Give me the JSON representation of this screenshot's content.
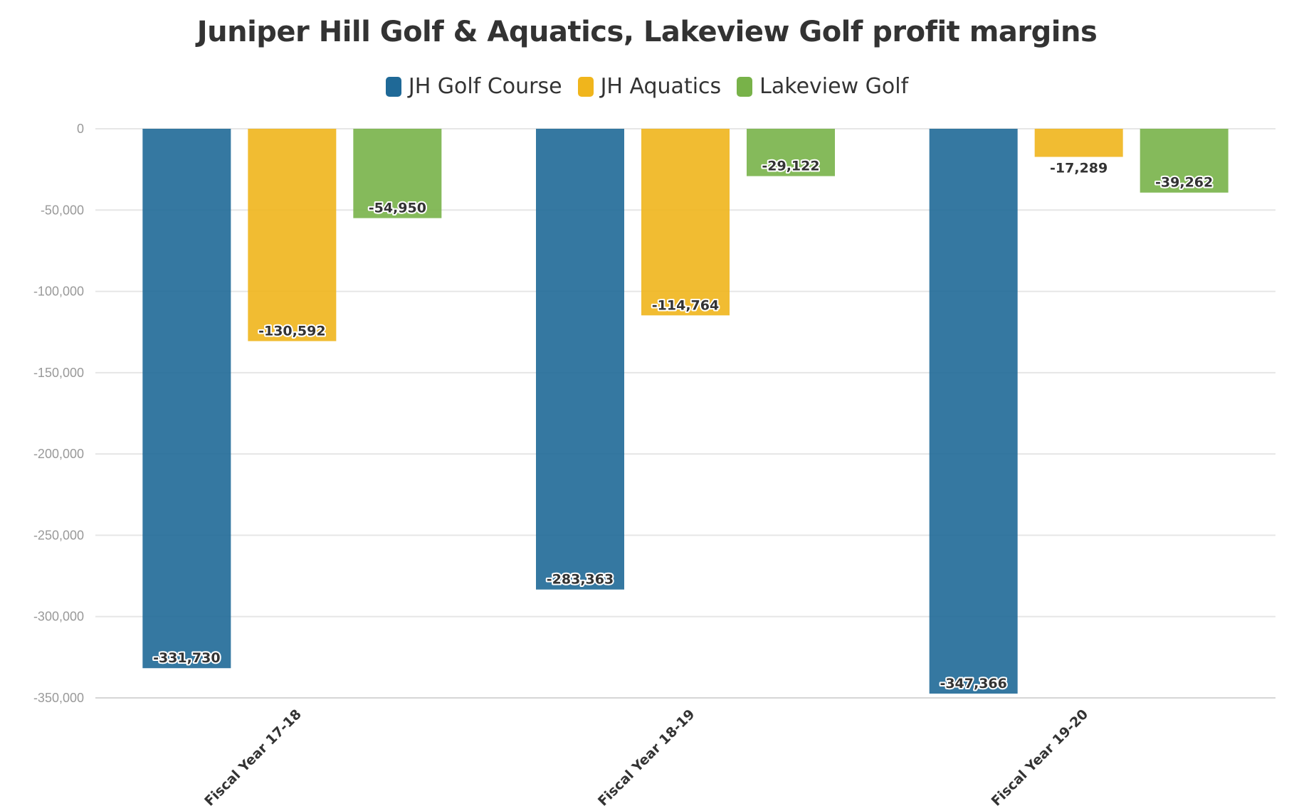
{
  "chart_data": {
    "type": "bar",
    "title": "Juniper Hill Golf & Aquatics, Lakeview Golf profit margins",
    "categories": [
      "Fiscal Year 17-18",
      "Fiscal Year 18-19",
      "Fiscal Year 19-20"
    ],
    "series": [
      {
        "name": "JH Golf Course",
        "color": "#1f6997",
        "values": [
          -331730,
          -283363,
          -347366
        ],
        "labels": [
          "-331,730",
          "-283,363",
          "-347,366"
        ]
      },
      {
        "name": "JH Aquatics",
        "color": "#f0b51c",
        "values": [
          -130592,
          -114764,
          -17289
        ],
        "labels": [
          "-130,592",
          "-114,764",
          "-17,289"
        ]
      },
      {
        "name": "Lakeview Golf",
        "color": "#78b249",
        "values": [
          -54950,
          -29122,
          -39262
        ],
        "labels": [
          "-54,950",
          "-29,122",
          "-39,262"
        ]
      }
    ],
    "ylim": [
      -350000,
      0
    ],
    "yticks": [
      0,
      -50000,
      -100000,
      -150000,
      -200000,
      -250000,
      -300000,
      -350000
    ],
    "ytick_labels": [
      "0",
      "-50,000",
      "-100,000",
      "-150,000",
      "-200,000",
      "-250,000",
      "-300,000",
      "-350,000"
    ],
    "grid": true,
    "legend_position": "top-center",
    "xlabel": "",
    "ylabel": ""
  }
}
